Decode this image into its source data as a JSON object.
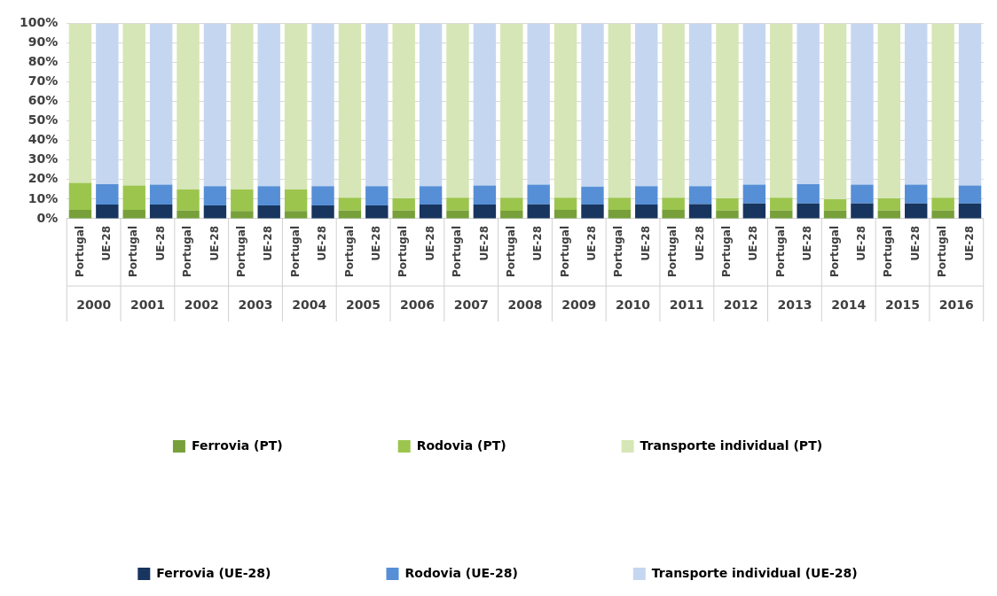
{
  "chart_data": {
    "type": "bar",
    "stacked": true,
    "grid": "y",
    "legend": "bottom",
    "categories": [
      "Portugal",
      "UE-28",
      "Portugal",
      "UE-28",
      "Portugal",
      "UE-28",
      "Portugal",
      "UE-28",
      "Portugal",
      "UE-28",
      "Portugal",
      "UE-28",
      "Portugal",
      "UE-28",
      "Portugal",
      "UE-28",
      "Portugal",
      "UE-28",
      "Portugal",
      "UE-28",
      "Portugal",
      "UE-28",
      "Portugal",
      "UE-28",
      "Portugal",
      "UE-28",
      "Portugal",
      "UE-28",
      "Portugal",
      "UE-28",
      "Portugal",
      "UE-28",
      "Portugal",
      "UE-28"
    ],
    "annotations": [
      "2000",
      "2001",
      "2002",
      "2003",
      "2004",
      "2005",
      "2006",
      "2007",
      "2008",
      "2009",
      "2010",
      "2011",
      "2012",
      "2013",
      "2014",
      "2015",
      "2016"
    ],
    "ylim": [
      0,
      100
    ],
    "yticks": [
      {
        "value": 0,
        "label": "0%"
      },
      {
        "value": 10,
        "label": "10%"
      },
      {
        "value": 20,
        "label": "20%"
      },
      {
        "value": 30,
        "label": "30%"
      },
      {
        "value": 40,
        "label": "40%"
      },
      {
        "value": 50,
        "label": "50%"
      },
      {
        "value": 60,
        "label": "60%"
      },
      {
        "value": 70,
        "label": "70%"
      },
      {
        "value": 80,
        "label": "80%"
      },
      {
        "value": 90,
        "label": "90%"
      },
      {
        "value": 100,
        "label": "100%"
      }
    ],
    "series": [
      {
        "name": "Ferrovia (PT)",
        "color": "#77a03a",
        "values": [
          4.5,
          null,
          4.5,
          null,
          4.2,
          null,
          3.9,
          null,
          3.9,
          null,
          4.2,
          null,
          4.2,
          null,
          4.2,
          null,
          4.1,
          null,
          4.5,
          null,
          4.5,
          null,
          4.5,
          null,
          4.2,
          null,
          4.2,
          null,
          4.2,
          null,
          4.2,
          null,
          4.2,
          null
        ]
      },
      {
        "name": "Rodovia (PT)",
        "color": "#9cc54d",
        "values": [
          13.8,
          null,
          12.5,
          null,
          10.8,
          null,
          11.1,
          null,
          11.1,
          null,
          6.5,
          null,
          6.2,
          null,
          6.5,
          null,
          6.6,
          null,
          6.2,
          null,
          6.2,
          null,
          6.2,
          null,
          6.2,
          null,
          6.5,
          null,
          5.8,
          null,
          6.2,
          null,
          6.5,
          null
        ]
      },
      {
        "name": "Transporte individual (PT)",
        "color": "#d6e6b6",
        "values": [
          81.7,
          null,
          83.0,
          null,
          85.0,
          null,
          85.0,
          null,
          85.0,
          null,
          89.3,
          null,
          89.6,
          null,
          89.3,
          null,
          89.3,
          null,
          89.3,
          null,
          89.3,
          null,
          89.3,
          null,
          89.6,
          null,
          89.3,
          null,
          90.0,
          null,
          89.6,
          null,
          89.3,
          null
        ]
      },
      {
        "name": "Ferrovia (UE-28)",
        "color": "#17355e",
        "values": [
          null,
          7.2,
          null,
          7.2,
          null,
          6.8,
          null,
          6.8,
          null,
          6.8,
          null,
          6.8,
          null,
          7.2,
          null,
          7.2,
          null,
          7.4,
          null,
          7.2,
          null,
          7.2,
          null,
          7.5,
          null,
          7.8,
          null,
          7.8,
          null,
          7.8,
          null,
          7.8,
          null,
          7.8
        ]
      },
      {
        "name": "Rodovia (UE-28)",
        "color": "#568fd6",
        "values": [
          null,
          10.5,
          null,
          10.2,
          null,
          9.9,
          null,
          9.9,
          null,
          9.9,
          null,
          9.9,
          null,
          9.5,
          null,
          9.8,
          null,
          10.0,
          null,
          9.2,
          null,
          9.5,
          null,
          9.2,
          null,
          9.6,
          null,
          9.9,
          null,
          9.6,
          null,
          9.6,
          null,
          9.2
        ]
      },
      {
        "name": "Transporte individual (UE-28)",
        "color": "#c5d7f0",
        "values": [
          null,
          82.3,
          null,
          82.6,
          null,
          83.3,
          null,
          83.3,
          null,
          83.3,
          null,
          83.3,
          null,
          83.3,
          null,
          83.0,
          null,
          82.6,
          null,
          83.6,
          null,
          83.3,
          null,
          83.3,
          null,
          82.6,
          null,
          82.3,
          null,
          82.6,
          null,
          82.6,
          null,
          83.0
        ]
      }
    ]
  }
}
